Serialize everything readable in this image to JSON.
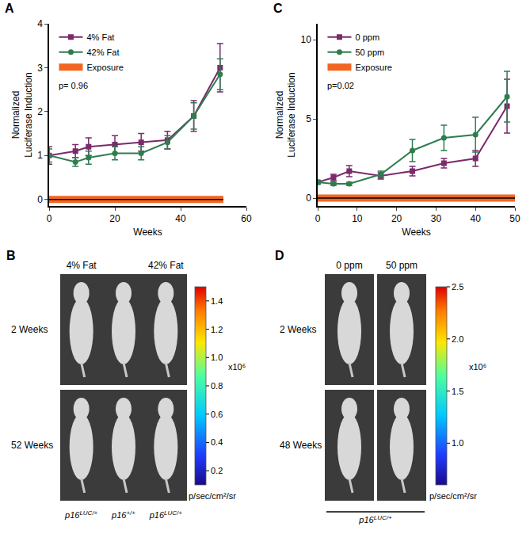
{
  "chart_data": [
    {
      "panel": "A",
      "type": "line",
      "xlabel": "Weeks",
      "ylabel": "Normalized Luciferase Induction",
      "annotation": "p= 0.96",
      "legend": "upper left",
      "grid": false,
      "xlim": [
        0,
        60
      ],
      "xticks": [
        0,
        20,
        40,
        60
      ],
      "ylim": [
        -0.15,
        4
      ],
      "yticks": [
        0,
        1,
        2,
        3,
        4
      ],
      "x": [
        0,
        8,
        12,
        20,
        28,
        36,
        44,
        52
      ],
      "series": [
        {
          "name": "4% Fat",
          "color": "#7b2a6b",
          "marker": "square",
          "values": [
            1.0,
            1.1,
            1.2,
            1.25,
            1.3,
            1.35,
            1.9,
            3.0
          ],
          "errors": [
            0.2,
            0.15,
            0.2,
            0.2,
            0.2,
            0.2,
            0.35,
            0.55
          ]
        },
        {
          "name": "42% Fat",
          "color": "#2e7d4f",
          "marker": "circle",
          "values": [
            1.0,
            0.85,
            0.95,
            1.05,
            1.05,
            1.3,
            1.9,
            2.85
          ],
          "errors": [
            0.15,
            0.1,
            0.15,
            0.15,
            0.15,
            0.15,
            0.3,
            0.35
          ]
        }
      ],
      "exposure": {
        "name": "Exposure",
        "color": "#f26522",
        "x": [
          0,
          53
        ],
        "y": 0
      }
    },
    {
      "panel": "C",
      "type": "line",
      "xlabel": "Weeks",
      "ylabel": "Normalized Luciferase Induction",
      "annotation": "p=0.02",
      "legend": "upper left",
      "grid": false,
      "xlim": [
        0,
        50
      ],
      "xticks": [
        0,
        10,
        20,
        30,
        40,
        50
      ],
      "ylim": [
        -0.5,
        11
      ],
      "yticks": [
        0,
        5,
        10
      ],
      "x": [
        0,
        4,
        8,
        16,
        24,
        32,
        40,
        48
      ],
      "series": [
        {
          "name": "0 ppm",
          "color": "#7b2a6b",
          "marker": "square",
          "values": [
            1.0,
            1.3,
            1.7,
            1.4,
            1.7,
            2.2,
            2.5,
            5.8
          ],
          "errors": [
            0.1,
            0.2,
            0.35,
            0.2,
            0.3,
            0.3,
            0.5,
            1.7
          ]
        },
        {
          "name": "50 ppm",
          "color": "#2e7d4f",
          "marker": "circle",
          "values": [
            1.0,
            0.9,
            0.9,
            1.5,
            3.0,
            3.8,
            4.0,
            6.4
          ],
          "errors": [
            0.1,
            0.1,
            0.1,
            0.2,
            0.7,
            0.8,
            1.1,
            1.6
          ]
        }
      ],
      "exposure": {
        "name": "Exposure",
        "color": "#f26522",
        "x": [
          0,
          50
        ],
        "y": 0
      }
    }
  ],
  "image_panels": [
    {
      "panel": "B",
      "column_labels": [
        "4% Fat",
        "42% Fat"
      ],
      "rows": [
        "2 Weeks",
        "52 Weeks"
      ],
      "genotypes": [
        {
          "text": "p16",
          "sup": "LUC/+"
        },
        {
          "text": "p16",
          "sup": "+/+"
        },
        {
          "text": "p16",
          "sup": "LUC/+"
        }
      ],
      "colorbar": {
        "range": [
          0.1,
          1.5
        ],
        "ticks": [
          0.2,
          0.4,
          0.6,
          0.8,
          {
            "value": 1,
            "label": "1.0"
          },
          1.2,
          1.4
        ],
        "multiplier": "x10⁶",
        "unit": "p/sec/cm²/sr"
      }
    },
    {
      "panel": "D",
      "column_labels": [
        "0 ppm",
        "50 ppm"
      ],
      "rows": [
        "2 Weeks",
        "48 Weeks"
      ],
      "genotypes": [
        {
          "text": "p16",
          "sup": "LUC/+"
        }
      ],
      "colorbar": {
        "range": [
          0.6,
          2.5
        ],
        "ticks": [
          {
            "value": 1,
            "label": "1.0"
          },
          1.5,
          {
            "value": 2,
            "label": "2.0"
          },
          2.5
        ],
        "multiplier": "x10⁶",
        "unit": "p/sec/cm²/sr"
      }
    }
  ]
}
